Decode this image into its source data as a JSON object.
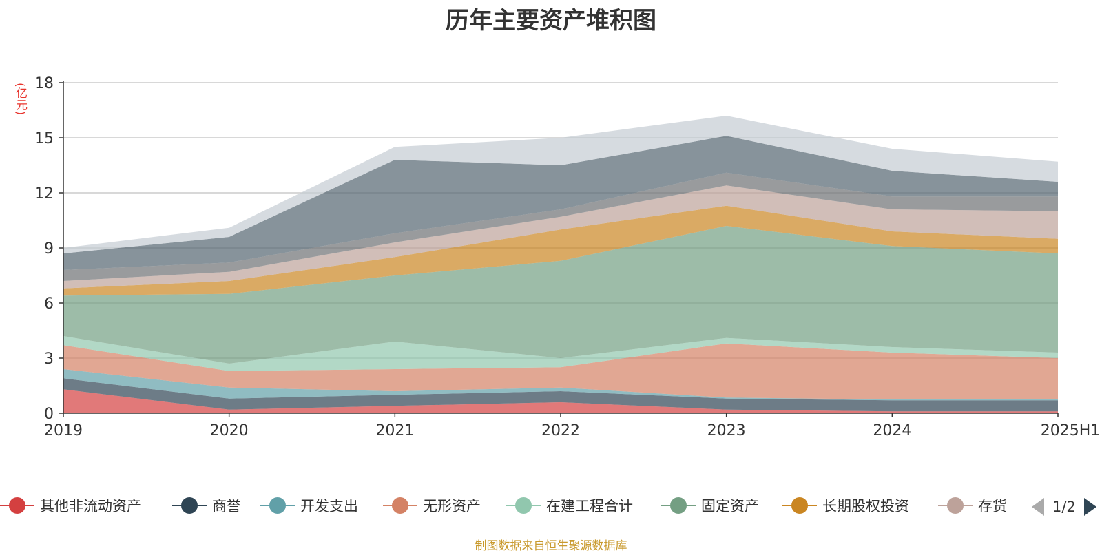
{
  "chart_data": {
    "type": "area",
    "stacked": true,
    "title": "历年主要资产堆积图",
    "ylabel": "(亿元)",
    "xlabel": "",
    "ylim": [
      0,
      18
    ],
    "yticks": [
      0,
      3,
      6,
      9,
      12,
      15,
      18
    ],
    "grid": true,
    "categories": [
      "2019",
      "2020",
      "2021",
      "2022",
      "2023",
      "2024",
      "2025H1"
    ],
    "series": [
      {
        "name": "其他非流动资产",
        "color": "#d44040",
        "values": [
          1.3,
          0.2,
          0.4,
          0.6,
          0.2,
          0.1,
          0.1
        ]
      },
      {
        "name": "商誉",
        "color": "#2f4554",
        "values": [
          0.6,
          0.6,
          0.6,
          0.6,
          0.6,
          0.6,
          0.6
        ]
      },
      {
        "name": "开发支出",
        "color": "#61a0a8",
        "values": [
          0.5,
          0.6,
          0.2,
          0.2,
          0.05,
          0.05,
          0.05
        ]
      },
      {
        "name": "无形资产",
        "color": "#d48265",
        "values": [
          1.3,
          0.9,
          1.2,
          1.1,
          2.95,
          2.55,
          2.25
        ]
      },
      {
        "name": "在建工程合计",
        "color": "#91c7ae",
        "values": [
          0.5,
          0.4,
          1.5,
          0.5,
          0.3,
          0.3,
          0.3
        ]
      },
      {
        "name": "固定资产",
        "color": "#749f83",
        "values": [
          2.2,
          3.8,
          3.6,
          5.3,
          6.1,
          5.5,
          5.4
        ]
      },
      {
        "name": "长期股权投资",
        "color": "#ca8622",
        "values": [
          0.4,
          0.7,
          1.0,
          1.7,
          1.1,
          0.8,
          0.8
        ]
      },
      {
        "name": "存货",
        "color": "#bda29a",
        "values": [
          0.4,
          0.5,
          0.8,
          0.7,
          1.1,
          1.2,
          1.5
        ]
      },
      {
        "name": "",
        "color": "#6e7074",
        "values": [
          0.6,
          0.5,
          0.5,
          0.4,
          0.7,
          0.7,
          0.8
        ]
      },
      {
        "name": "",
        "color": "#546570",
        "values": [
          0.9,
          1.4,
          4.0,
          2.4,
          2.0,
          1.4,
          0.8
        ]
      },
      {
        "name": "",
        "color": "#c4ccd3",
        "values": [
          0.3,
          0.5,
          0.7,
          1.5,
          1.1,
          1.2,
          1.1
        ]
      }
    ],
    "legend": {
      "position": "bottom",
      "page": "1/2"
    }
  },
  "source_note": "制图数据来自恒生聚源数据库"
}
